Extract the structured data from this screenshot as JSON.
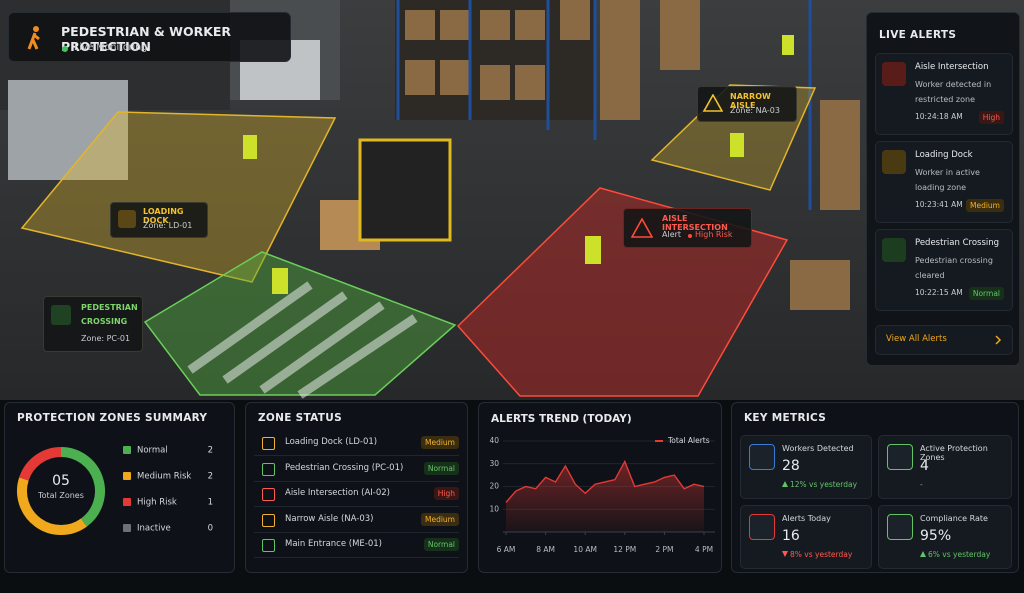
{
  "header": {
    "title": "PEDESTRIAN & WORKER PROTECTION",
    "status": "Live Monitoring"
  },
  "overlays": {
    "loading_dock": {
      "title": "LOADING DOCK",
      "zone": "Zone: LD-01"
    },
    "pedestrian_crossing": {
      "title_1": "PEDESTRIAN",
      "title_2": "CROSSING",
      "zone": "Zone: PC-01"
    },
    "narrow_aisle": {
      "title": "NARROW AISLE",
      "zone": "Zone: NA-03"
    },
    "aisle_intersection": {
      "title": "AISLE INTERSECTION",
      "status": "Alert",
      "risk": "High Risk"
    }
  },
  "live_alerts": {
    "title": "LIVE ALERTS",
    "items": [
      {
        "title": "Aisle Intersection",
        "text": "Worker detected in restricted zone",
        "time": "10:24:18 AM",
        "level": "High"
      },
      {
        "title": "Loading Dock",
        "text": "Worker in active loading zone",
        "time": "10:23:41 AM",
        "level": "Medium"
      },
      {
        "title": "Pedestrian Crossing",
        "text": "Pedestrian crossing cleared",
        "time": "10:22:15 AM",
        "level": "Normal"
      }
    ],
    "link": "View All Alerts"
  },
  "summary": {
    "title": "PROTECTION ZONES SUMMARY",
    "total": "05",
    "total_label": "Total Zones",
    "items": [
      {
        "name": "Normal",
        "value": 2,
        "color": "#4caf50"
      },
      {
        "name": "Medium Risk",
        "value": 2,
        "color": "#f0a81c"
      },
      {
        "name": "High Risk",
        "value": 1,
        "color": "#e53935"
      },
      {
        "name": "Inactive",
        "value": 0,
        "color": "#6b7178"
      }
    ]
  },
  "zone_status": {
    "title": "ZONE STATUS",
    "rows": [
      {
        "name": "Loading Dock (LD-01)",
        "level": "Medium"
      },
      {
        "name": "Pedestrian Crossing (PC-01)",
        "level": "Normal"
      },
      {
        "name": "Aisle Intersection (AI-02)",
        "level": "High"
      },
      {
        "name": "Narrow Aisle (NA-03)",
        "level": "Medium"
      },
      {
        "name": "Main Entrance (ME-01)",
        "level": "Normal"
      }
    ]
  },
  "chart_data": {
    "type": "line",
    "title": "ALERTS TREND (TODAY)",
    "x": [
      6,
      6.5,
      7,
      7.5,
      8,
      8.5,
      9,
      9.5,
      10,
      10.5,
      11,
      11.5,
      12,
      12.5,
      13,
      13.5,
      14,
      14.5,
      15,
      15.5,
      16
    ],
    "series": [
      {
        "name": "Total Alerts",
        "color": "#e53935",
        "values": [
          13,
          18,
          20,
          19,
          24,
          22,
          29,
          21,
          17,
          21,
          22,
          23,
          31,
          20,
          21,
          22,
          24,
          25,
          19,
          21,
          20
        ]
      }
    ],
    "xlim": [
      6,
      16
    ],
    "xticks": [
      {
        "value": 6,
        "label": "6 AM"
      },
      {
        "value": 8,
        "label": "8 AM"
      },
      {
        "value": 10,
        "label": "10 AM"
      },
      {
        "value": 12,
        "label": "12 PM"
      },
      {
        "value": 14,
        "label": "2 PM"
      },
      {
        "value": 16,
        "label": "4 PM"
      }
    ],
    "ylim": [
      0,
      40
    ],
    "yticks": [
      10,
      20,
      30,
      40
    ],
    "grid": true
  },
  "metrics": {
    "title": "KEY METRICS",
    "cards": [
      {
        "label": "Workers Detected",
        "value": "28",
        "delta": "12% vs yesterday"
      },
      {
        "label": "Active Protection Zones",
        "value": "4",
        "delta": "-"
      },
      {
        "label": "Alerts Today",
        "value": "16",
        "delta": "8% vs yesterday"
      },
      {
        "label": "Compliance Rate",
        "value": "95%",
        "delta": "6% vs yesterday"
      }
    ]
  }
}
